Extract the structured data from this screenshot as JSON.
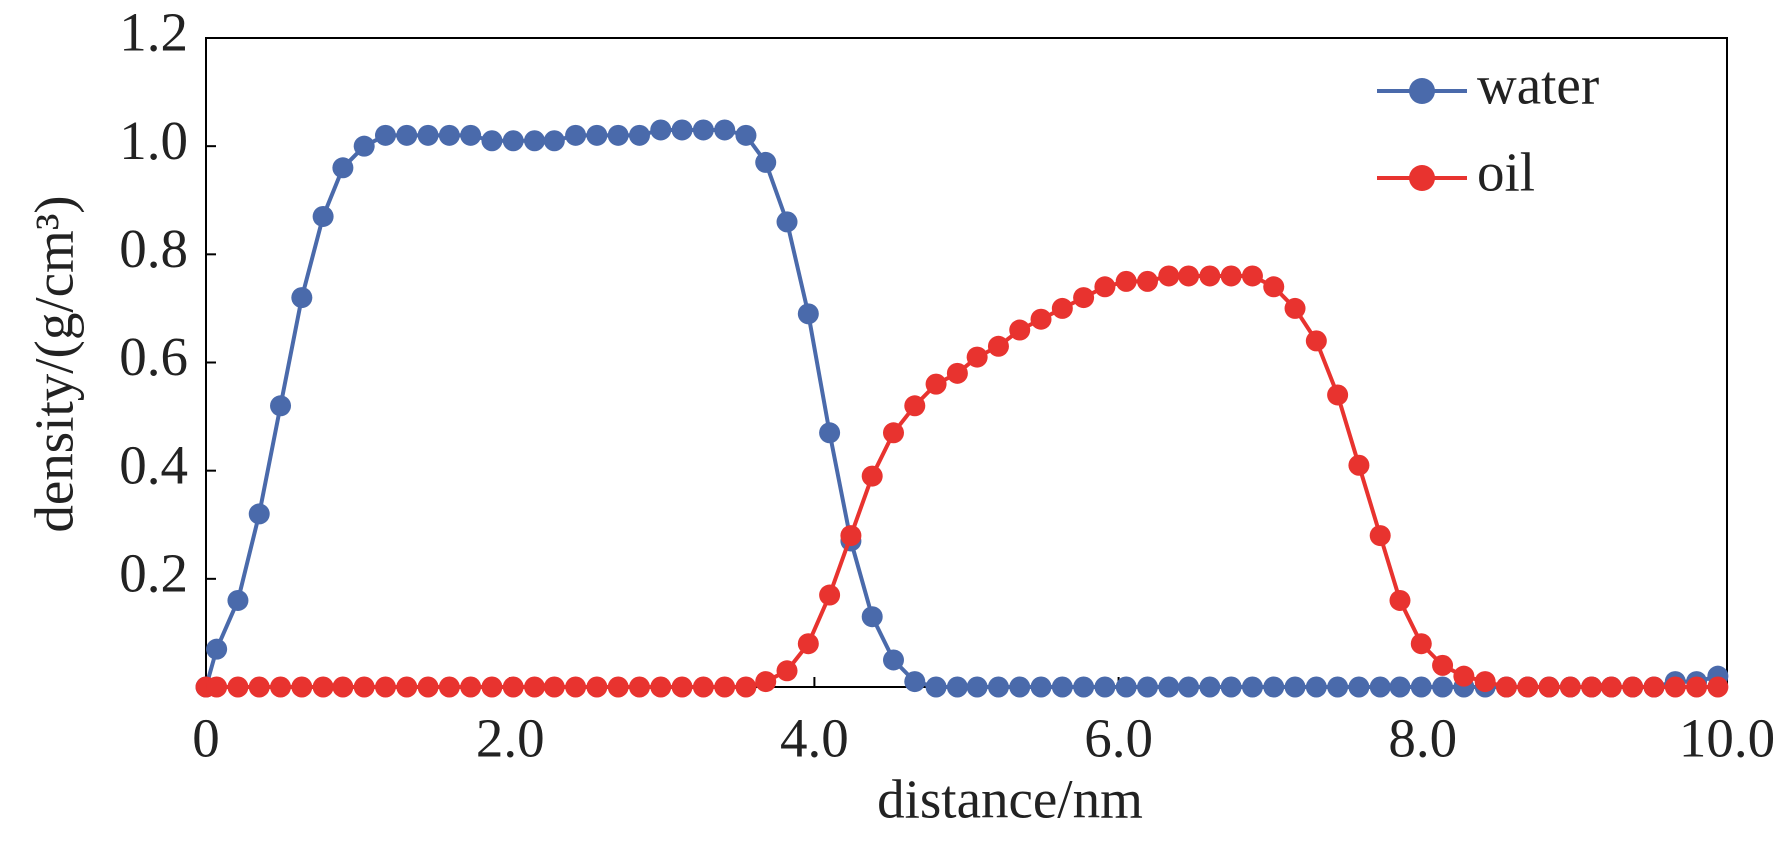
{
  "chart_data": {
    "type": "line",
    "x_label": "distance/nm",
    "y_label": "density/(g/cm³)",
    "x": [
      0,
      0.07,
      0.21,
      0.35,
      0.49,
      0.63,
      0.77,
      0.9,
      1.04,
      1.18,
      1.32,
      1.46,
      1.6,
      1.74,
      1.88,
      2.02,
      2.16,
      2.29,
      2.43,
      2.57,
      2.71,
      2.85,
      2.99,
      3.13,
      3.27,
      3.41,
      3.55,
      3.68,
      3.82,
      3.96,
      4.1,
      4.24,
      4.38,
      4.52,
      4.66,
      4.8,
      4.94,
      5.07,
      5.21,
      5.35,
      5.49,
      5.63,
      5.77,
      5.91,
      6.05,
      6.19,
      6.33,
      6.46,
      6.6,
      6.74,
      6.88,
      7.02,
      7.16,
      7.3,
      7.44,
      7.58,
      7.72,
      7.85,
      7.99,
      8.13,
      8.27,
      8.41,
      8.55,
      8.69,
      8.83,
      8.97,
      9.11,
      9.24,
      9.38,
      9.52,
      9.66,
      9.8,
      9.94
    ],
    "series": [
      {
        "name": "water",
        "color": "#4a6aab",
        "values": [
          0,
          0.07,
          0.16,
          0.32,
          0.52,
          0.72,
          0.87,
          0.96,
          1.0,
          1.02,
          1.02,
          1.02,
          1.02,
          1.02,
          1.01,
          1.01,
          1.01,
          1.01,
          1.02,
          1.02,
          1.02,
          1.02,
          1.03,
          1.03,
          1.03,
          1.03,
          1.02,
          0.97,
          0.86,
          0.69,
          0.47,
          0.27,
          0.13,
          0.05,
          0.01,
          0,
          0,
          0,
          0,
          0,
          0,
          0,
          0,
          0,
          0,
          0,
          0,
          0,
          0,
          0,
          0,
          0,
          0,
          0,
          0,
          0,
          0,
          0,
          0,
          0,
          0,
          0,
          0,
          0,
          0,
          0,
          0,
          0,
          0,
          0,
          0.01,
          0.01,
          0.02
        ]
      },
      {
        "name": "oil",
        "color": "#e8332f",
        "values": [
          0,
          0,
          0,
          0,
          0,
          0,
          0,
          0,
          0,
          0,
          0,
          0,
          0,
          0,
          0,
          0,
          0,
          0,
          0,
          0,
          0,
          0,
          0,
          0,
          0,
          0,
          0,
          0.01,
          0.03,
          0.08,
          0.17,
          0.28,
          0.39,
          0.47,
          0.52,
          0.56,
          0.58,
          0.61,
          0.63,
          0.66,
          0.68,
          0.7,
          0.72,
          0.74,
          0.75,
          0.75,
          0.76,
          0.76,
          0.76,
          0.76,
          0.76,
          0.74,
          0.7,
          0.64,
          0.54,
          0.41,
          0.28,
          0.16,
          0.08,
          0.04,
          0.02,
          0.01,
          0,
          0,
          0,
          0,
          0,
          0,
          0,
          0,
          0,
          0,
          0
        ]
      }
    ],
    "xlim": [
      0,
      10
    ],
    "ylim": [
      0,
      1.2
    ],
    "xticks": [
      0,
      {
        "value": 2,
        "label": "2.0"
      },
      {
        "value": 4,
        "label": "4.0"
      },
      {
        "value": 6,
        "label": "6.0"
      },
      {
        "value": 8,
        "label": "8.0"
      },
      {
        "value": 10,
        "label": "10.0"
      }
    ],
    "yticks": [
      0.2,
      0.4,
      0.6,
      0.8,
      {
        "value": 1,
        "label": "1.0"
      },
      1.2
    ],
    "grid": false,
    "legend": "upper right"
  }
}
